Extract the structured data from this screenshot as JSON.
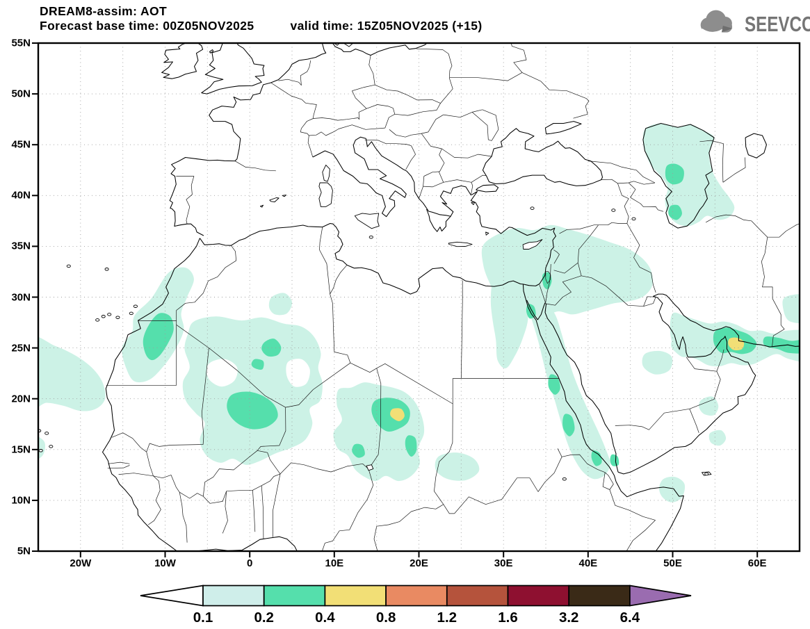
{
  "header": {
    "title": "DREAM8-assim: AOT",
    "forecast_base": "Forecast base time: 00Z05NOV2025",
    "valid": "valid time: 15Z05NOV2025 (+15)"
  },
  "logo": {
    "text": "SEEVCCC"
  },
  "map": {
    "x_ticks": [
      {
        "label": "20W",
        "lon": -20
      },
      {
        "label": "10W",
        "lon": -10
      },
      {
        "label": "0",
        "lon": 0
      },
      {
        "label": "10E",
        "lon": 10
      },
      {
        "label": "20E",
        "lon": 20
      },
      {
        "label": "30E",
        "lon": 30
      },
      {
        "label": "40E",
        "lon": 40
      },
      {
        "label": "50E",
        "lon": 50
      },
      {
        "label": "60E",
        "lon": 60
      }
    ],
    "y_ticks": [
      {
        "label": "55N",
        "lat": 55
      },
      {
        "label": "50N",
        "lat": 50
      },
      {
        "label": "45N",
        "lat": 45
      },
      {
        "label": "40N",
        "lat": 40
      },
      {
        "label": "35N",
        "lat": 35
      },
      {
        "label": "30N",
        "lat": 30
      },
      {
        "label": "25N",
        "lat": 25
      },
      {
        "label": "20N",
        "lat": 20
      },
      {
        "label": "15N",
        "lat": 15
      },
      {
        "label": "10N",
        "lat": 10
      },
      {
        "label": "5N",
        "lat": 5
      }
    ],
    "fill_colors": {
      "aot_0.1_0.2": "#ccf2e6",
      "aot_0.2_0.4": "#55dfac",
      "aot_0.4_0.8": "#f2df76"
    }
  },
  "colorbar": {
    "labels": [
      "0.1",
      "0.2",
      "0.4",
      "0.8",
      "1.2",
      "1.6",
      "3.2",
      "6.4"
    ],
    "below_color": "#ffffff",
    "segment_colors": [
      "#cfeeea",
      "#55dfac",
      "#f2df76",
      "#e98a62",
      "#b5533c",
      "#8e1030",
      "#3a2a17"
    ],
    "above_color": "#9a6cb0",
    "outline_color": "#000000"
  }
}
